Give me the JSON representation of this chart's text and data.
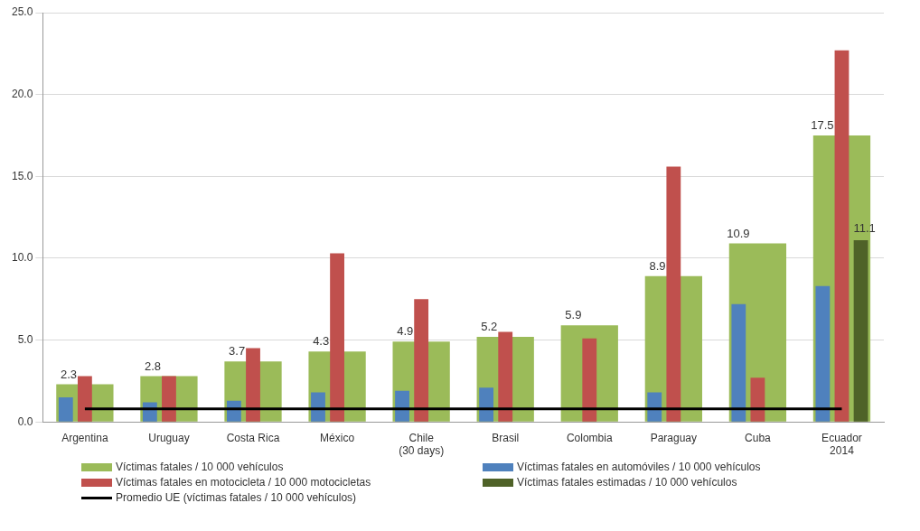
{
  "chart_data": {
    "type": "bar",
    "categories": [
      "Argentina",
      "Uruguay",
      "Costa Rica",
      "México",
      "Chile\n(30 days)",
      "Brasil",
      "Colombia",
      "Paraguay",
      "Cuba",
      "Ecuador\n2014"
    ],
    "series": [
      {
        "name": "Víctimas fatales / 10 000 vehículos",
        "color": "#9bbb59",
        "values": [
          2.3,
          2.8,
          3.7,
          4.3,
          4.9,
          5.2,
          5.9,
          8.9,
          10.9,
          17.5
        ],
        "value_labels": [
          "2.3",
          "2.8",
          "3.7",
          "4.3",
          "4.9",
          "5.2",
          "5.9",
          "8.9",
          "10.9",
          "17.5"
        ]
      },
      {
        "name": "Víctimas fatales en automóviles / 10 000 vehículos",
        "color": "#4f81bd",
        "values": [
          1.5,
          1.2,
          1.3,
          1.8,
          1.9,
          2.1,
          null,
          1.8,
          7.2,
          8.3
        ]
      },
      {
        "name": "Víctimas fatales en motocicleta / 10 000 motocicletas",
        "color": "#c0504d",
        "values": [
          2.8,
          2.8,
          4.5,
          10.3,
          7.5,
          5.5,
          5.1,
          15.6,
          2.7,
          22.7
        ]
      },
      {
        "name": "Víctimas fatales estimadas / 10 000 vehículos",
        "color": "#4f6228",
        "values": [
          null,
          null,
          null,
          null,
          null,
          null,
          null,
          null,
          null,
          11.1
        ],
        "value_labels": [
          null,
          null,
          null,
          null,
          null,
          null,
          null,
          null,
          null,
          "11.1"
        ]
      },
      {
        "name": "Promedio UE (víctimas fatales / 10 000 vehículos)",
        "color": "#000000",
        "type": "line",
        "values": [
          0.8,
          0.8,
          0.8,
          0.8,
          0.8,
          0.8,
          0.8,
          0.8,
          0.8,
          0.8
        ]
      }
    ],
    "ylim": [
      0,
      25
    ],
    "yticks": [
      {
        "value": 0,
        "label": "0.0"
      },
      {
        "value": 5,
        "label": "5.0"
      },
      {
        "value": 10,
        "label": "10.0"
      },
      {
        "value": 15,
        "label": "15.0"
      },
      {
        "value": 20,
        "label": "20.0"
      },
      {
        "value": 25,
        "label": "25.0"
      }
    ],
    "grid": "y",
    "legend": "bottom",
    "marker": "none"
  }
}
